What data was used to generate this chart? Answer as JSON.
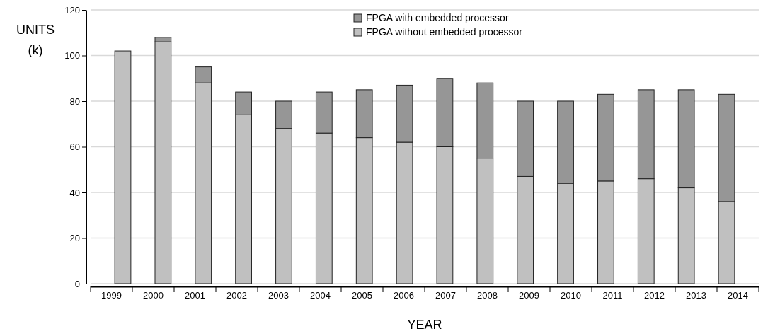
{
  "chart_data": {
    "type": "bar",
    "stacked": true,
    "xlabel": "YEAR",
    "ylabel": "UNITS (k)",
    "categories": [
      "1999",
      "2000",
      "2001",
      "2002",
      "2003",
      "2004",
      "2005",
      "2006",
      "2007",
      "2008",
      "2009",
      "2010",
      "2011",
      "2012",
      "2013",
      "2014"
    ],
    "series": [
      {
        "name": "FPGA without embedded processor",
        "color": "#c0c0c0",
        "values": [
          102,
          106,
          88,
          74,
          68,
          66,
          64,
          62,
          60,
          55,
          47,
          44,
          45,
          46,
          42,
          36
        ]
      },
      {
        "name": "FPGA with embedded processor",
        "color": "#969696",
        "values": [
          0,
          2,
          7,
          10,
          12,
          18,
          21,
          25,
          30,
          33,
          33,
          36,
          38,
          39,
          43,
          47
        ]
      }
    ],
    "ylim": [
      0,
      120
    ],
    "yticks": [
      0,
      20,
      40,
      60,
      80,
      100,
      120
    ],
    "grid": "y",
    "legend": "top"
  }
}
